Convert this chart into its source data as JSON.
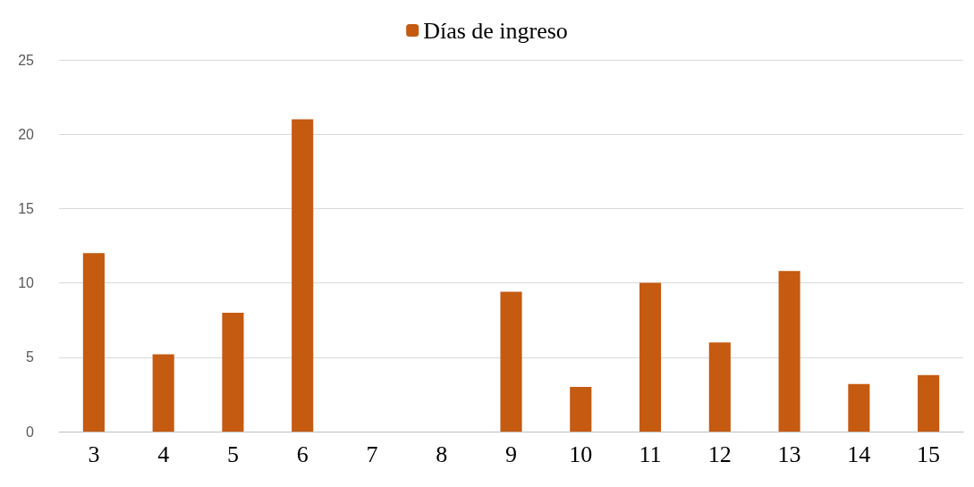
{
  "chart_data": {
    "type": "bar",
    "categories": [
      "3",
      "4",
      "5",
      "6",
      "7",
      "8",
      "9",
      "10",
      "11",
      "12",
      "13",
      "14",
      "15"
    ],
    "series": [
      {
        "name": "Días de ingreso",
        "color": "#c55a11",
        "values": [
          12,
          5.2,
          8,
          21,
          null,
          null,
          9.4,
          3,
          10,
          6,
          10.8,
          3.2,
          3.8
        ]
      }
    ],
    "ylim": [
      0,
      25
    ],
    "yticks": [
      0,
      5,
      10,
      15,
      20,
      25
    ],
    "grid": "y",
    "legend": "top"
  }
}
